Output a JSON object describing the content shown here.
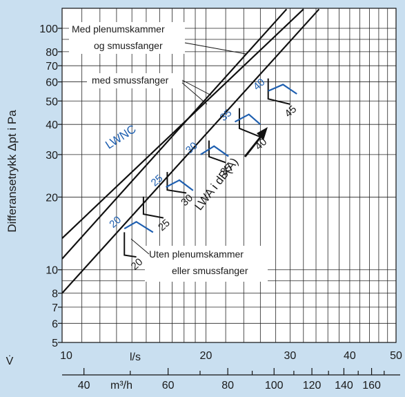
{
  "chart_data": {
    "type": "line",
    "title": "",
    "ylabel": "Differansetrykk Δpt i Pa",
    "xlabel_primary": "l/s",
    "xlabel_secondary": "m³/h",
    "x_symbol": "V̇",
    "x_scale": "log",
    "y_scale": "log",
    "xlim": [
      10,
      50
    ],
    "ylim": [
      5,
      120
    ],
    "x_ticks": [
      {
        "value": 10,
        "label": "10"
      },
      {
        "value": 20,
        "label": "20"
      },
      {
        "value": 30,
        "label": "30"
      },
      {
        "value": 40,
        "label": "40"
      },
      {
        "value": 50,
        "label": "50"
      }
    ],
    "x2_ticks": [
      {
        "value": 40,
        "label": "40"
      },
      {
        "value": 60,
        "label": "60"
      },
      {
        "value": 80,
        "label": "80"
      },
      {
        "value": 100,
        "label": "100"
      },
      {
        "value": 120,
        "label": "120"
      },
      {
        "value": 140,
        "label": "140"
      },
      {
        "value": 160,
        "label": "160"
      }
    ],
    "y_ticks": [
      {
        "value": 5,
        "label": "5"
      },
      {
        "value": 6,
        "label": "6"
      },
      {
        "value": 7,
        "label": "7"
      },
      {
        "value": 8,
        "label": "8"
      },
      {
        "value": 10,
        "label": "10"
      },
      {
        "value": 20,
        "label": "20"
      },
      {
        "value": 30,
        "label": "30"
      },
      {
        "value": 40,
        "label": "40"
      },
      {
        "value": 50,
        "label": "50"
      },
      {
        "value": 60,
        "label": "60"
      },
      {
        "value": 70,
        "label": "70"
      },
      {
        "value": 80,
        "label": "80"
      },
      {
        "value": 100,
        "label": "100"
      }
    ],
    "grid": true,
    "series": [
      {
        "name": "Med plenumskammer og smussfanger",
        "x": [
          10,
          32
        ],
        "y": [
          13.5,
          120
        ]
      },
      {
        "name": "med smussfanger",
        "x": [
          10,
          29.5
        ],
        "y": [
          11.1,
          120
        ]
      },
      {
        "name": "Uten plenumskammer eller smussfanger",
        "x": [
          10,
          34.5
        ],
        "y": [
          8,
          120
        ]
      }
    ],
    "lwa_ticks": [
      {
        "label": "20",
        "x": [
          13.5,
          13.5,
          14.3
        ],
        "y": [
          14.3,
          11.5,
          11.3
        ]
      },
      {
        "label": "25",
        "x": [
          14.8,
          14.8,
          16.3
        ],
        "y": [
          20.1,
          17.0,
          16.4
        ]
      },
      {
        "label": "30",
        "x": [
          16.6,
          16.6,
          18.2
        ],
        "y": [
          25.4,
          21.4,
          20.8
        ]
      },
      {
        "label": "35",
        "x": [
          20.3,
          20.3,
          22.0
        ],
        "y": [
          34.3,
          29.4,
          27.8
        ]
      },
      {
        "label": "40",
        "x": [
          23.5,
          23.5,
          26.0
        ],
        "y": [
          46.7,
          38.5,
          35.5
        ]
      },
      {
        "label": "45",
        "x": [
          27.0,
          27.0,
          30.0
        ],
        "y": [
          62.0,
          51.0,
          48.5
        ]
      }
    ],
    "lwnc_ticks": [
      {
        "label": "20",
        "x": [
          13.5,
          14.3,
          15.5
        ],
        "y": [
          14.8,
          15.8,
          14.3
        ]
      },
      {
        "label": "25",
        "x": [
          16.5,
          17.6,
          18.8
        ],
        "y": [
          22.0,
          23.5,
          21.3
        ]
      },
      {
        "label": "30",
        "x": [
          19.5,
          20.8,
          22.3
        ],
        "y": [
          30.0,
          32.5,
          29.5
        ]
      },
      {
        "label": "35",
        "x": [
          23.0,
          24.6,
          26.0
        ],
        "y": [
          41.0,
          44.0,
          40.0
        ]
      },
      {
        "label": "40",
        "x": [
          27.0,
          29.0,
          31.0
        ],
        "y": [
          55.0,
          58.5,
          53.5
        ]
      }
    ],
    "annotations": {
      "lwnc_label": "LWNC",
      "lwa_label": "LWA i dB(A)",
      "label_plenum_line1": "Med plenumskammer",
      "label_plenum_line2": "og smussfanger",
      "label_smuss": "med smussfanger",
      "label_uten_line1": "Uten plenumskammer",
      "label_uten_line2": "eller smussfanger"
    },
    "colors": {
      "background": "#c9dff0",
      "plot_background": "#ffffff",
      "lines": "#111111",
      "lwnc": "#1e5fb0"
    }
  }
}
